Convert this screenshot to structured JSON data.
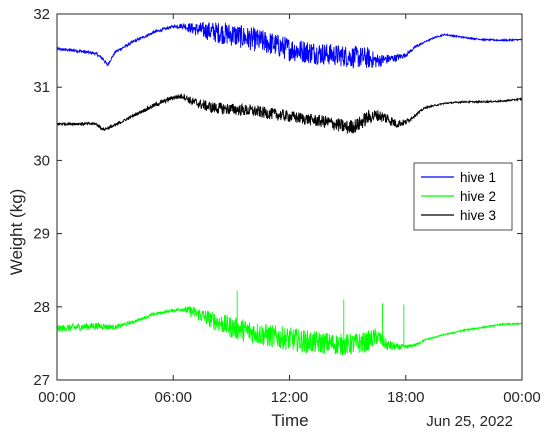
{
  "chart_data": {
    "type": "line",
    "title": "",
    "xlabel": "Time",
    "ylabel": "Weight (kg)",
    "date_label": "Jun 25, 2022",
    "x_ticks": [
      "00:00",
      "06:00",
      "12:00",
      "18:00",
      "00:00"
    ],
    "y_ticks": [
      "27",
      "28",
      "29",
      "30",
      "31",
      "32"
    ],
    "xlim_hours": [
      0,
      24
    ],
    "ylim": [
      27,
      32
    ],
    "grid": false,
    "legend_position": "right",
    "series": [
      {
        "name": "hive 1",
        "color": "#0000ff",
        "hours": [
          0,
          1,
          2,
          2.4,
          2.6,
          3,
          4,
          5,
          6,
          6.5,
          7,
          8,
          9,
          10,
          11,
          12,
          13,
          14,
          15,
          16,
          16.5,
          17,
          17.5,
          18,
          18.5,
          19,
          19.5,
          20,
          21,
          22,
          23,
          24
        ],
        "values": [
          31.52,
          31.5,
          31.46,
          31.38,
          31.3,
          31.48,
          31.63,
          31.75,
          31.83,
          31.84,
          31.8,
          31.76,
          31.72,
          31.66,
          31.6,
          31.52,
          31.48,
          31.45,
          31.42,
          31.4,
          31.36,
          31.38,
          31.4,
          31.44,
          31.55,
          31.62,
          31.68,
          31.72,
          31.68,
          31.65,
          31.64,
          31.65
        ],
        "noise": [
          0.02,
          0.02,
          0.02,
          0.02,
          0.02,
          0.02,
          0.02,
          0.02,
          0.02,
          0.04,
          0.08,
          0.14,
          0.16,
          0.16,
          0.16,
          0.16,
          0.16,
          0.15,
          0.15,
          0.15,
          0.1,
          0.07,
          0.05,
          0.03,
          0.02,
          0.01,
          0.01,
          0.01,
          0.01,
          0.01,
          0.01,
          0.01
        ]
      },
      {
        "name": "hive 2",
        "color": "#00ff00",
        "hours": [
          0,
          1,
          2,
          3,
          4,
          5,
          6,
          6.5,
          7,
          8,
          9,
          10,
          11,
          12,
          13,
          14,
          15,
          16,
          16.5,
          17,
          17.5,
          18,
          18.5,
          19,
          20,
          21,
          22,
          23,
          24
        ],
        "values": [
          27.7,
          27.72,
          27.74,
          27.72,
          27.8,
          27.9,
          27.95,
          27.97,
          27.93,
          27.82,
          27.72,
          27.66,
          27.6,
          27.56,
          27.52,
          27.5,
          27.48,
          27.52,
          27.6,
          27.48,
          27.45,
          27.45,
          27.48,
          27.55,
          27.62,
          27.68,
          27.72,
          27.76,
          27.77
        ],
        "noise": [
          0.05,
          0.05,
          0.05,
          0.03,
          0.02,
          0.02,
          0.02,
          0.03,
          0.08,
          0.12,
          0.15,
          0.16,
          0.16,
          0.16,
          0.16,
          0.15,
          0.15,
          0.14,
          0.12,
          0.08,
          0.05,
          0.03,
          0.02,
          0.01,
          0.01,
          0.01,
          0.01,
          0.01,
          0.01
        ]
      },
      {
        "name": "hive 3",
        "color": "#000000",
        "hours": [
          0,
          1,
          2,
          2.4,
          3,
          4,
          5,
          6,
          6.5,
          7,
          8,
          9,
          10,
          11,
          12,
          13,
          14,
          15,
          15.5,
          16,
          16.5,
          17,
          17.5,
          18,
          18.5,
          19,
          20,
          21,
          22,
          23,
          24
        ],
        "values": [
          30.5,
          30.5,
          30.5,
          30.42,
          30.48,
          30.62,
          30.75,
          30.86,
          30.88,
          30.8,
          30.72,
          30.7,
          30.68,
          30.64,
          30.6,
          30.56,
          30.52,
          30.45,
          30.48,
          30.58,
          30.62,
          30.58,
          30.5,
          30.52,
          30.62,
          30.72,
          30.78,
          30.8,
          30.8,
          30.81,
          30.84
        ],
        "noise": [
          0.02,
          0.02,
          0.02,
          0.02,
          0.02,
          0.02,
          0.03,
          0.03,
          0.04,
          0.06,
          0.08,
          0.08,
          0.08,
          0.08,
          0.08,
          0.08,
          0.09,
          0.1,
          0.1,
          0.1,
          0.08,
          0.08,
          0.06,
          0.04,
          0.02,
          0.01,
          0.01,
          0.01,
          0.01,
          0.01,
          0.01
        ]
      }
    ],
    "spikes": [
      {
        "series": "hive 2",
        "hour": 9.3,
        "value": 28.22
      },
      {
        "series": "hive 2",
        "hour": 14.8,
        "value": 28.1
      },
      {
        "series": "hive 2",
        "hour": 16.8,
        "value": 28.05
      },
      {
        "series": "hive 2",
        "hour": 17.9,
        "value": 28.03
      }
    ]
  }
}
